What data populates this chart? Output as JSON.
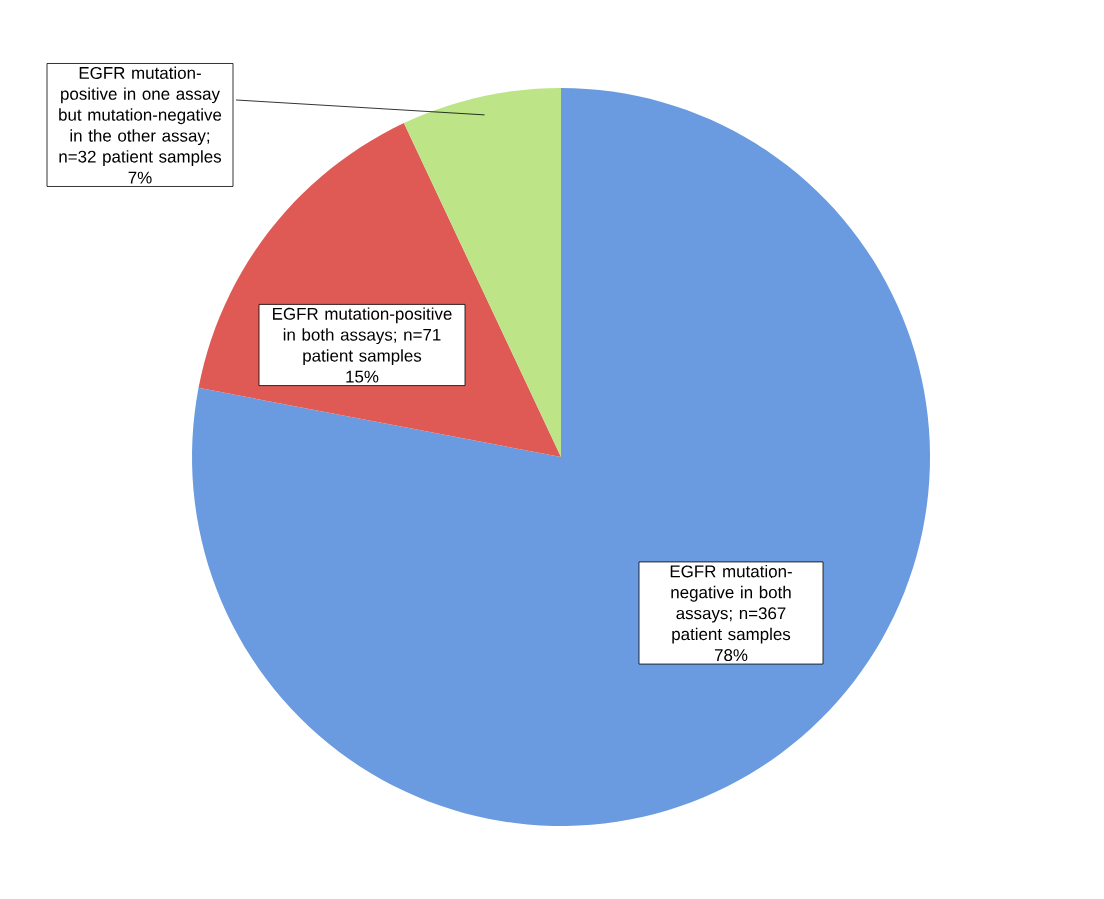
{
  "chart_data": {
    "type": "pie",
    "categories": [
      "EGFR mutation-negative in both assays; n=367 patient samples",
      "EGFR mutation-positive in both assays; n=71 patient samples",
      "EGFR mutation-positive in one assay but mutation-negative in the other assay; n=32 patient samples"
    ],
    "values": [
      78,
      15,
      7
    ],
    "value_labels": [
      "78%",
      "15%",
      "7%"
    ],
    "colors": [
      "#6a9be0",
      "#e05a55",
      "#bde487"
    ]
  }
}
